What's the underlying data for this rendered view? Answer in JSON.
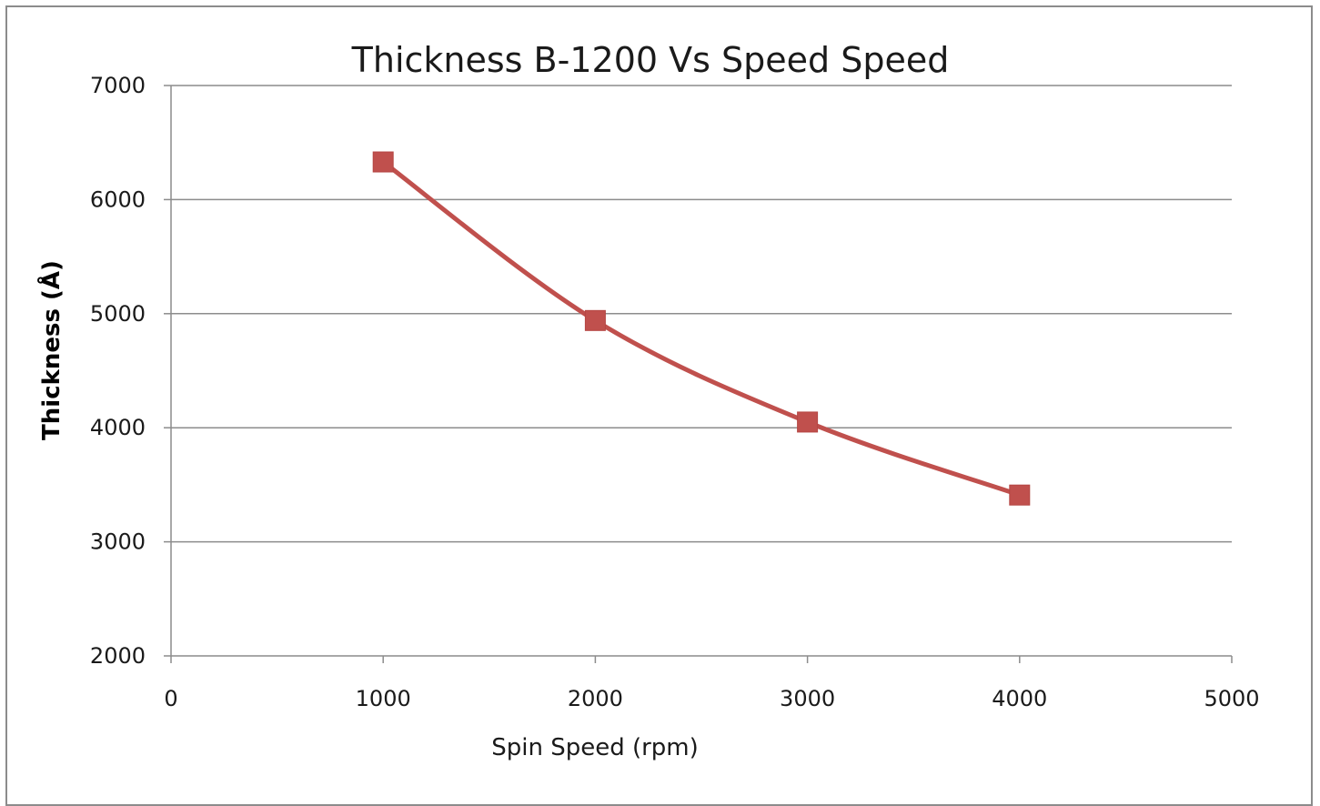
{
  "chart_data": {
    "type": "line",
    "title": "Thickness B-1200 Vs Speed Speed",
    "xlabel": "Spin Speed (rpm)",
    "ylabel": "Thickness (Å)",
    "xlim": [
      0,
      5000
    ],
    "ylim": [
      2000,
      7000
    ],
    "xticks": [
      0,
      1000,
      2000,
      3000,
      4000,
      5000
    ],
    "yticks": [
      2000,
      3000,
      4000,
      5000,
      6000,
      7000
    ],
    "grid": "horizontal",
    "legend": "none",
    "series": [
      {
        "color": "#c0504d",
        "marker": "square",
        "smooth": true,
        "points": [
          {
            "x": 1000,
            "y": 6330
          },
          {
            "x": 2000,
            "y": 4940
          },
          {
            "x": 3000,
            "y": 4050
          },
          {
            "x": 4000,
            "y": 3410
          }
        ]
      }
    ]
  }
}
